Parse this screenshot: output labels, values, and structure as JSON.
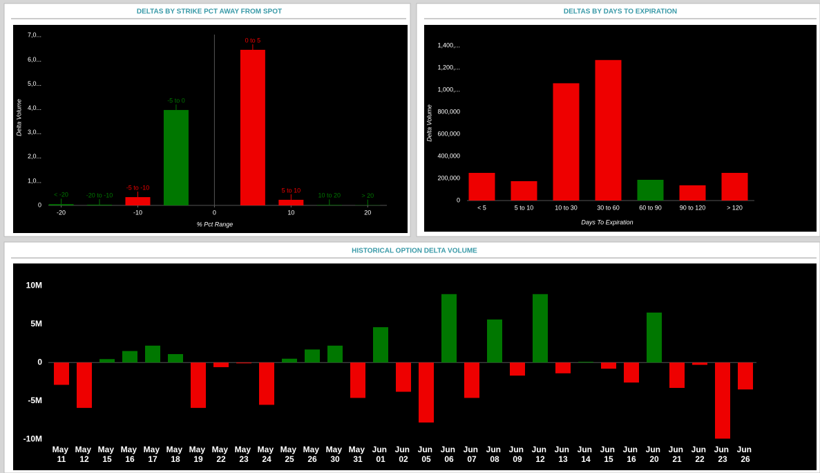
{
  "chart_data": [
    {
      "type": "bar",
      "title": "DELTAS BY STRIKE PCT AWAY FROM SPOT",
      "y_label": "Delta Volume",
      "x_label": "% Pct Range",
      "x": [
        -20,
        -15,
        -10,
        -5,
        5,
        10,
        15,
        20
      ],
      "categories": [
        "< -20",
        "-20 to -10",
        "-5 to -10",
        "-5 to 0",
        "0 to 5",
        "5 to 10",
        "10 to 20",
        "> 20"
      ],
      "values": [
        50000,
        30000,
        340000,
        3930000,
        6410000,
        230000,
        20000,
        10000
      ],
      "colors": [
        "#007700",
        "#007700",
        "#ee0000",
        "#007700",
        "#ee0000",
        "#ee0000",
        "#007700",
        "#007700"
      ],
      "xlim": [
        -26,
        22.5
      ],
      "xticks": [
        -20,
        -10,
        0,
        10,
        20
      ],
      "ylim": [
        0,
        7200000
      ],
      "yticks": [
        0,
        {
          "value": 1000000,
          "label": "1,0..."
        },
        {
          "value": 2000000,
          "label": "2,0..."
        },
        {
          "value": 3000000,
          "label": "3,0..."
        },
        {
          "value": 4000000,
          "label": "4,0..."
        },
        {
          "value": 5000000,
          "label": "5,0..."
        },
        {
          "value": 6000000,
          "label": "6,0..."
        },
        {
          "value": 7000000,
          "label": "7,0..."
        }
      ]
    },
    {
      "type": "bar",
      "title": "DELTAS BY DAYS TO EXPIRATION",
      "y_label": "Delta Volume",
      "x_label": "Days To Expiration",
      "categories": [
        "< 5",
        "5 to 10",
        "10 to 30",
        "30 to 60",
        "60 to 90",
        "90 to 120",
        "> 120"
      ],
      "values": [
        250000,
        175000,
        1060000,
        1270000,
        187500,
        137500,
        250000
      ],
      "colors": [
        "#ee0000",
        "#ee0000",
        "#ee0000",
        "#ee0000",
        "#007700",
        "#ee0000",
        "#ee0000"
      ],
      "ylim": [
        0,
        1450000
      ],
      "yticks": [
        0,
        {
          "value": 200000,
          "label": "200,000"
        },
        {
          "value": 400000,
          "label": "400,000"
        },
        {
          "value": 600000,
          "label": "600,000"
        },
        {
          "value": 800000,
          "label": "800,000"
        },
        {
          "value": 1000000,
          "label": "1,000,..."
        },
        {
          "value": 1200000,
          "label": "1,200,..."
        },
        {
          "value": 1400000,
          "label": "1,400,..."
        }
      ]
    },
    {
      "type": "bar",
      "title": "HISTORICAL OPTION DELTA VOLUME",
      "categories": [
        "May 11",
        "May 12",
        "May 15",
        "May 16",
        "May 17",
        "May 18",
        "May 19",
        "May 22",
        "May 23",
        "May 24",
        "May 25",
        "May 26",
        "May 30",
        "May 31",
        "Jun 01",
        "Jun 02",
        "Jun 05",
        "Jun 06",
        "Jun 07",
        "Jun 08",
        "Jun 09",
        "Jun 12",
        "Jun 13",
        "Jun 14",
        "Jun 15",
        "Jun 16",
        "Jun 20",
        "Jun 21",
        "Jun 22",
        "Jun 23",
        "Jun 26"
      ],
      "values": [
        -2900000,
        -5900000,
        450000,
        1500000,
        2200000,
        1100000,
        -5900000,
        -600000,
        -100000,
        -5500000,
        500000,
        1700000,
        2200000,
        -4600000,
        4600000,
        -3800000,
        -7800000,
        8900000,
        -4600000,
        5600000,
        -1700000,
        8900000,
        -1400000,
        100000,
        -800000,
        -2600000,
        6500000,
        -3300000,
        -300000,
        -9900000,
        -3500000
      ],
      "positive_color": "#007700",
      "negative_color": "#ee0000",
      "ylim": [
        -10500000,
        11000000
      ],
      "yticks": [
        {
          "value": -10000000,
          "label": "-10M"
        },
        {
          "value": -5000000,
          "label": "-5M"
        },
        0,
        {
          "value": 5000000,
          "label": "5M"
        },
        {
          "value": 10000000,
          "label": "10M"
        }
      ]
    }
  ]
}
